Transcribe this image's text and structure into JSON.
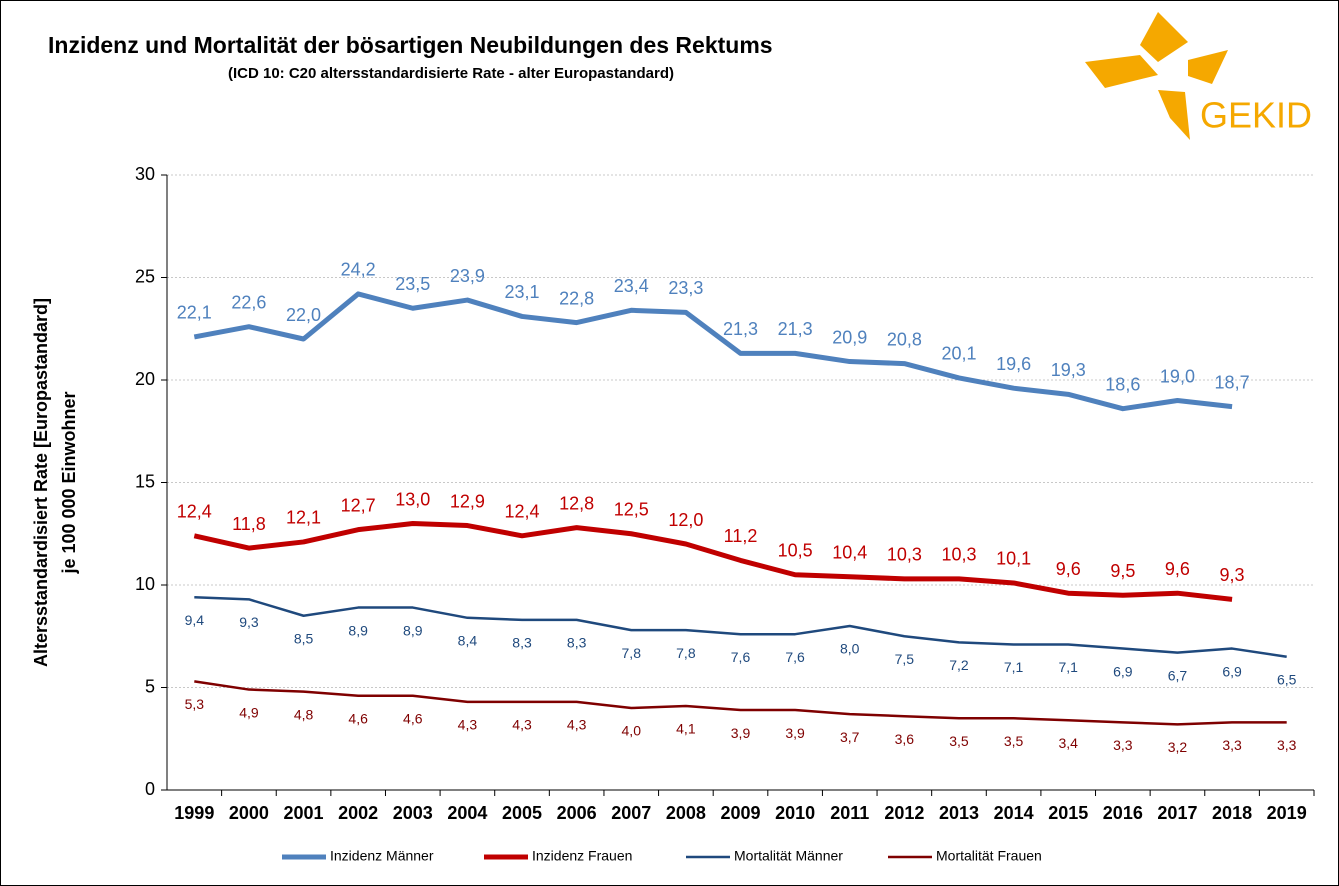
{
  "logo_text": "GEKID",
  "chart_data": {
    "type": "line",
    "title": "Inzidenz und Mortalität der bösartigen Neubildungen des Rektums",
    "subtitle": "(ICD 10: C20 altersstandardisierte Rate - alter Europastandard)",
    "ylabel": [
      "Altersstandardisiert  Rate [Europastandard]",
      "je 100 000 Einwohner"
    ],
    "categories": [
      "1999",
      "2000",
      "2001",
      "2002",
      "2003",
      "2004",
      "2005",
      "2006",
      "2007",
      "2008",
      "2009",
      "2010",
      "2011",
      "2012",
      "2013",
      "2014",
      "2015",
      "2016",
      "2017",
      "2018",
      "2019"
    ],
    "ylim": [
      0,
      30
    ],
    "yticks": [
      0,
      5,
      10,
      15,
      20,
      25,
      30
    ],
    "grid": true,
    "series": [
      {
        "name": "Inzidenz Männer",
        "color": "#4f81bd",
        "width": 5,
        "label_position": "above",
        "values": [
          22.1,
          22.6,
          22.0,
          24.2,
          23.5,
          23.9,
          23.1,
          22.8,
          23.4,
          23.3,
          21.3,
          21.3,
          20.9,
          20.8,
          20.1,
          19.6,
          19.3,
          18.6,
          19.0,
          18.7,
          null
        ],
        "value_labels": [
          "22,1",
          "22,6",
          "22,0",
          "24,2",
          "23,5",
          "23,9",
          "23,1",
          "22,8",
          "23,4",
          "23,3",
          "21,3",
          "21,3",
          "20,9",
          "20,8",
          "20,1",
          "19,6",
          "19,3",
          "18,6",
          "19,0",
          "18,7",
          null
        ]
      },
      {
        "name": "Inzidenz Frauen",
        "color": "#c00000",
        "width": 5,
        "label_position": "above",
        "values": [
          12.4,
          11.8,
          12.1,
          12.7,
          13.0,
          12.9,
          12.4,
          12.8,
          12.5,
          12.0,
          11.2,
          10.5,
          10.4,
          10.3,
          10.3,
          10.1,
          9.6,
          9.5,
          9.6,
          9.3,
          null
        ],
        "value_labels": [
          "12,4",
          "11,8",
          "12,1",
          "12,7",
          "13,0",
          "12,9",
          "12,4",
          "12,8",
          "12,5",
          "12,0",
          "11,2",
          "10,5",
          "10,4",
          "10,3",
          "10,3",
          "10,1",
          "9,6",
          "9,5",
          "9,6",
          "9,3",
          null
        ]
      },
      {
        "name": "Mortalität Männer",
        "color": "#1f497d",
        "width": 2.5,
        "label_position": "below",
        "values": [
          9.4,
          9.3,
          8.5,
          8.9,
          8.9,
          8.4,
          8.3,
          8.3,
          7.8,
          7.8,
          7.6,
          7.6,
          8.0,
          7.5,
          7.2,
          7.1,
          7.1,
          6.9,
          6.7,
          6.9,
          6.5
        ],
        "value_labels": [
          "9,4",
          "9,3",
          "8,5",
          "8,9",
          "8,9",
          "8,4",
          "8,3",
          "8,3",
          "7,8",
          "7,8",
          "7,6",
          "7,6",
          "8,0",
          "7,5",
          "7,2",
          "7,1",
          "7,1",
          "6,9",
          "6,7",
          "6,9",
          "6,5"
        ]
      },
      {
        "name": "Mortalität Frauen",
        "color": "#7f0000",
        "width": 2.5,
        "label_position": "below",
        "values": [
          5.3,
          4.9,
          4.8,
          4.6,
          4.6,
          4.3,
          4.3,
          4.3,
          4.0,
          4.1,
          3.9,
          3.9,
          3.7,
          3.6,
          3.5,
          3.5,
          3.4,
          3.3,
          3.2,
          3.3,
          3.3
        ],
        "value_labels": [
          "5,3",
          "4,9",
          "4,8",
          "4,6",
          "4,6",
          "4,3",
          "4,3",
          "4,3",
          "4,0",
          "4,1",
          "3,9",
          "3,9",
          "3,7",
          "3,6",
          "3,5",
          "3,5",
          "3,4",
          "3,3",
          "3,2",
          "3,3",
          "3,3"
        ]
      }
    ]
  }
}
